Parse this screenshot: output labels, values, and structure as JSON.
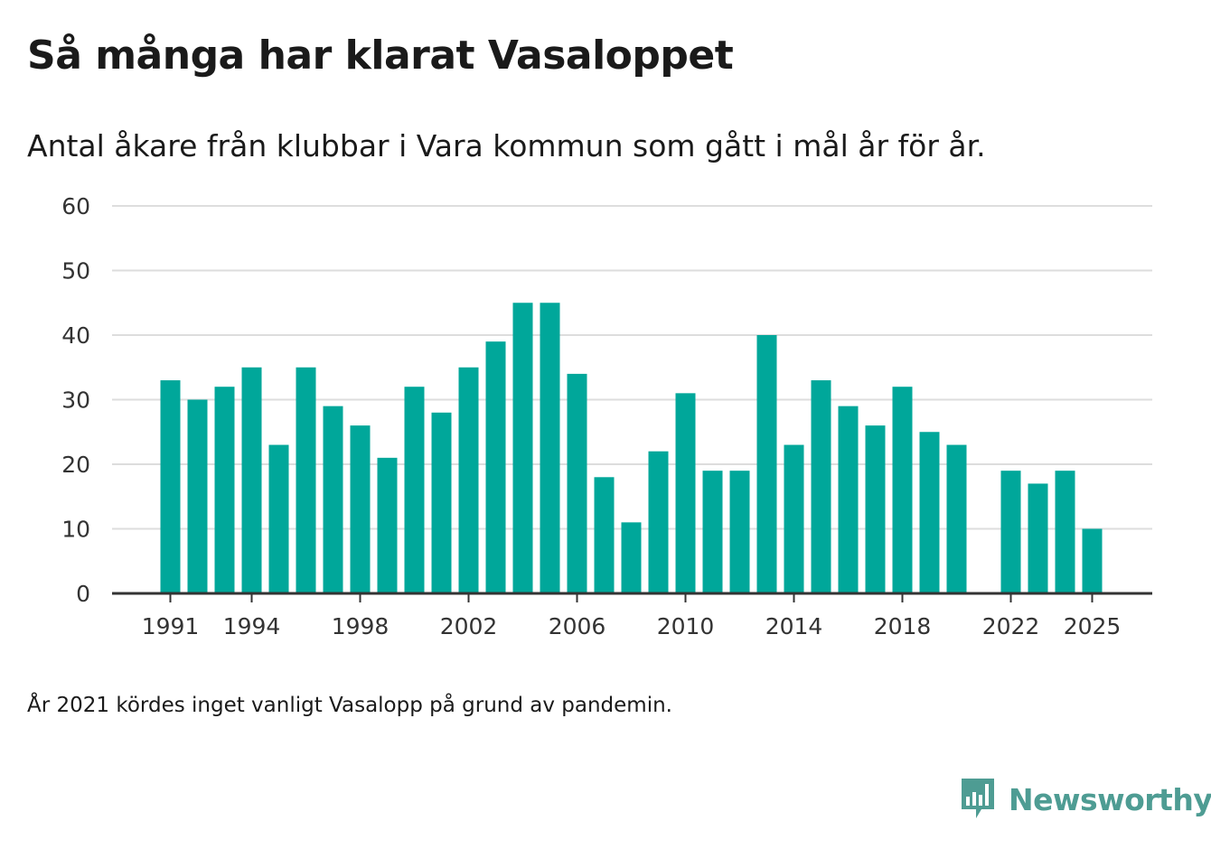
{
  "title": "Så många har klarat Vasaloppet",
  "subtitle": "Antal åkare från klubbar i Vara kommun som gått i mål år för år.",
  "footnote": "År 2021 kördes inget vanligt Vasalopp på grund av pandemin.",
  "brand": {
    "name": "Newsworthy",
    "icon": "newsworthy-logo-icon",
    "color": "#4e9c93"
  },
  "colors": {
    "bar": "#00a79a",
    "grid": "#dddddd",
    "axis": "#333333"
  },
  "chart_data": {
    "type": "bar",
    "title": "Så många har klarat Vasaloppet",
    "xlabel": "",
    "ylabel": "",
    "ylim": [
      0,
      60
    ],
    "yticks": [
      0,
      10,
      20,
      30,
      40,
      50,
      60
    ],
    "xtick_labels": [
      "1991",
      "1994",
      "1998",
      "2002",
      "2006",
      "2010",
      "2014",
      "2018",
      "2022",
      "2025"
    ],
    "categories": [
      1991,
      1992,
      1993,
      1994,
      1995,
      1996,
      1997,
      1998,
      1999,
      2000,
      2001,
      2002,
      2003,
      2004,
      2005,
      2006,
      2007,
      2008,
      2009,
      2010,
      2011,
      2012,
      2013,
      2014,
      2015,
      2016,
      2017,
      2018,
      2019,
      2020,
      2021,
      2022,
      2023,
      2024,
      2025
    ],
    "values": [
      33,
      30,
      32,
      35,
      23,
      35,
      29,
      26,
      21,
      32,
      28,
      35,
      39,
      45,
      45,
      34,
      18,
      11,
      22,
      31,
      19,
      19,
      40,
      23,
      33,
      29,
      26,
      32,
      25,
      23,
      null,
      19,
      17,
      19,
      10
    ],
    "grid": true,
    "legend": "none"
  }
}
